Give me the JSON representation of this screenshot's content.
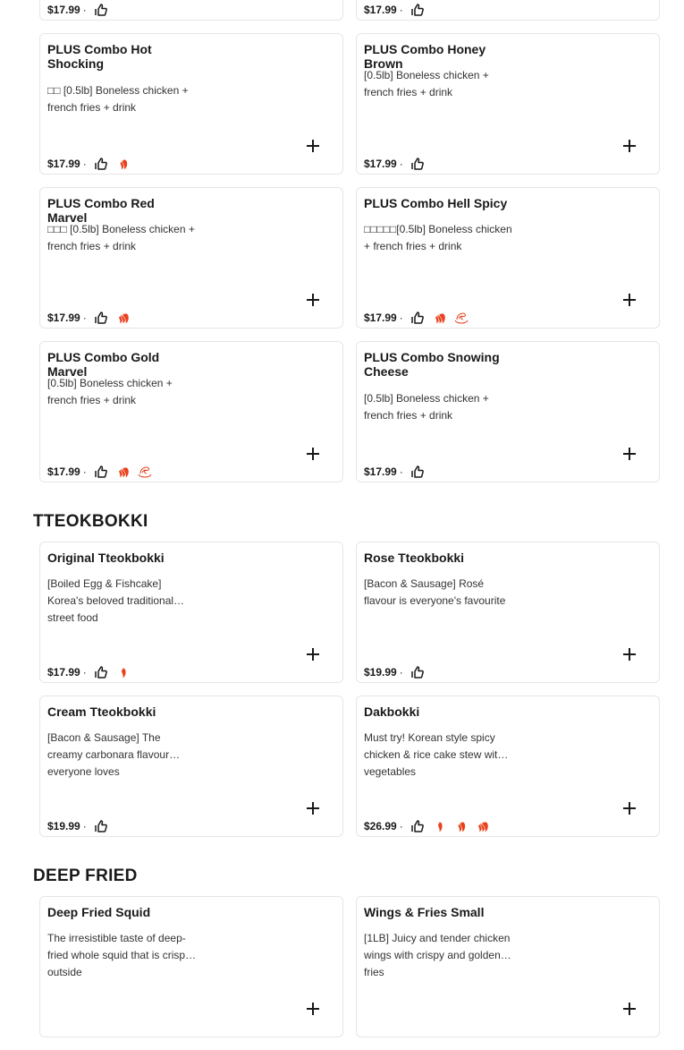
{
  "sections": [
    {
      "title": "",
      "cards": [
        {
          "title": "",
          "desc": "",
          "price": "$17.99",
          "icons": []
        },
        {
          "title": "",
          "desc": "",
          "price": "$17.99",
          "icons": []
        }
      ]
    },
    {
      "title": "",
      "cards": [
        {
          "title": "PLUS Combo Hot Shocking",
          "desc": "□□ [0.5lb] Boneless chicken + french fries + drink",
          "price": "$17.99",
          "icons": [
            "spicy-2"
          ]
        },
        {
          "title": "PLUS Combo Honey Brown",
          "desc": "[0.5lb] Boneless chicken + french fries + drink",
          "price": "$17.99",
          "icons": []
        },
        {
          "title": "PLUS Combo Red Marvel",
          "desc": "□□□ [0.5lb] Boneless chicken + french fries + drink",
          "price": "$17.99",
          "icons": [
            "spicy-3"
          ]
        },
        {
          "title": "PLUS Combo Hell Spicy",
          "desc": "□□□□□[0.5lb] Boneless chicken + french fries + drink",
          "price": "$17.99",
          "icons": [
            "spicy-3",
            "swirl"
          ]
        },
        {
          "title": "PLUS Combo Gold Marvel",
          "desc": "[0.5lb] Boneless chicken + french fries + drink",
          "price": "$17.99",
          "icons": [
            "spicy-3",
            "swirl"
          ]
        },
        {
          "title": "PLUS Combo Snowing Cheese",
          "desc": "[0.5lb] Boneless chicken + french fries + drink",
          "price": "$17.99",
          "icons": []
        }
      ]
    },
    {
      "title": "TTEOKBOKKI",
      "cards": [
        {
          "title": "Original Tteokbokki",
          "desc": "[Boiled Egg & Fishcake] Korea's beloved traditional street food",
          "price": "$17.99",
          "icons": [
            "spicy-1"
          ]
        },
        {
          "title": "Rose Tteokbokki",
          "desc": "[Bacon & Sausage] Rosé flavour is everyone's favourite",
          "price": "$19.99",
          "icons": []
        },
        {
          "title": "Cream Tteokbokki",
          "desc": "[Bacon & Sausage] The creamy carbonara flavour everyone loves",
          "price": "$19.99",
          "icons": []
        },
        {
          "title": "Dakbokki",
          "desc": "Must try! Korean style spicy chicken & rice cake stew with vegetables",
          "price": "$26.99",
          "icons": [
            "spicy-1",
            "spicy-2",
            "spicy-3"
          ]
        }
      ]
    },
    {
      "title": "DEEP FRIED",
      "cards": [
        {
          "title": "Deep Fried Squid",
          "desc": "The irresistible taste of deep-fried whole squid that is crispy outside",
          "price": "",
          "icons": []
        },
        {
          "title": "Wings & Fries Small",
          "desc": "[1LB] Juicy and tender chicken wings with crispy and golden fries",
          "price": "",
          "icons": []
        }
      ]
    }
  ],
  "colors": {
    "spicy": "#e8401c",
    "swirl": "#e8401c",
    "text": "#191919",
    "border": "#e6e6e6"
  }
}
